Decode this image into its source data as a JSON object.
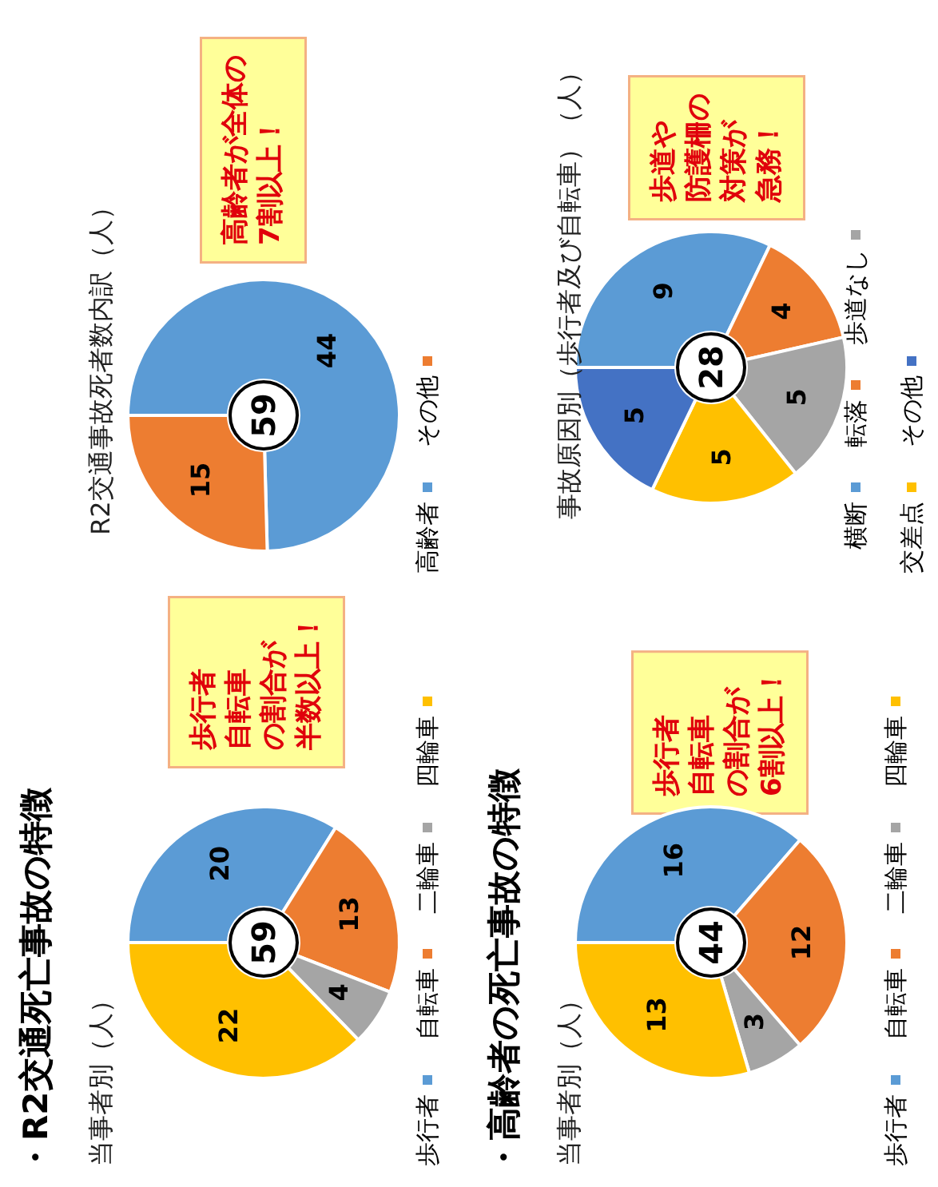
{
  "chart_data": [
    {
      "type": "donut",
      "title": "当事者別（人）",
      "categories": [
        "歩行者",
        "自転車",
        "二輪車",
        "四輪車"
      ],
      "values": [
        20,
        13,
        4,
        22
      ],
      "colors": [
        "#5b9bd5",
        "#ed7d31",
        "#a5a5a5",
        "#ffc000"
      ],
      "data_labels": true,
      "legend": "right",
      "annotations": [
        "・R2交通死亡事故の特徴",
        "59",
        "歩行者自転車の割合が半数以上！"
      ]
    },
    {
      "type": "donut",
      "title": "R2交通事故死者数内訳（人）",
      "categories": [
        "高齢者",
        "その他"
      ],
      "values": [
        44,
        15
      ],
      "colors": [
        "#5b9bd5",
        "#ed7d31"
      ],
      "data_labels": true,
      "legend": "right",
      "annotations": [
        "59",
        "高齢者が全体の7割以上！"
      ]
    },
    {
      "type": "donut",
      "title": "当事者別（人）",
      "categories": [
        "歩行者",
        "自転車",
        "二輪車",
        "四輪車"
      ],
      "values": [
        16,
        12,
        3,
        13
      ],
      "colors": [
        "#5b9bd5",
        "#ed7d31",
        "#a5a5a5",
        "#ffc000"
      ],
      "data_labels": true,
      "legend": "right",
      "annotations": [
        "・高齢者の死亡事故の特徴",
        "44",
        "歩行者自転車の割合が6割以上！"
      ]
    },
    {
      "type": "donut",
      "title": "事故原因別（歩行者及び自転車）（人）",
      "categories": [
        "横断",
        "転落",
        "歩道なし",
        "交差点",
        "その他"
      ],
      "values": [
        9,
        4,
        5,
        5,
        5
      ],
      "colors": [
        "#5b9bd5",
        "#ed7d31",
        "#a5a5a5",
        "#ffc000",
        "#4472c4"
      ],
      "data_labels": true,
      "legend": "right",
      "annotations": [
        "28",
        "歩道や防護柵の対策が急務！"
      ]
    }
  ]
}
